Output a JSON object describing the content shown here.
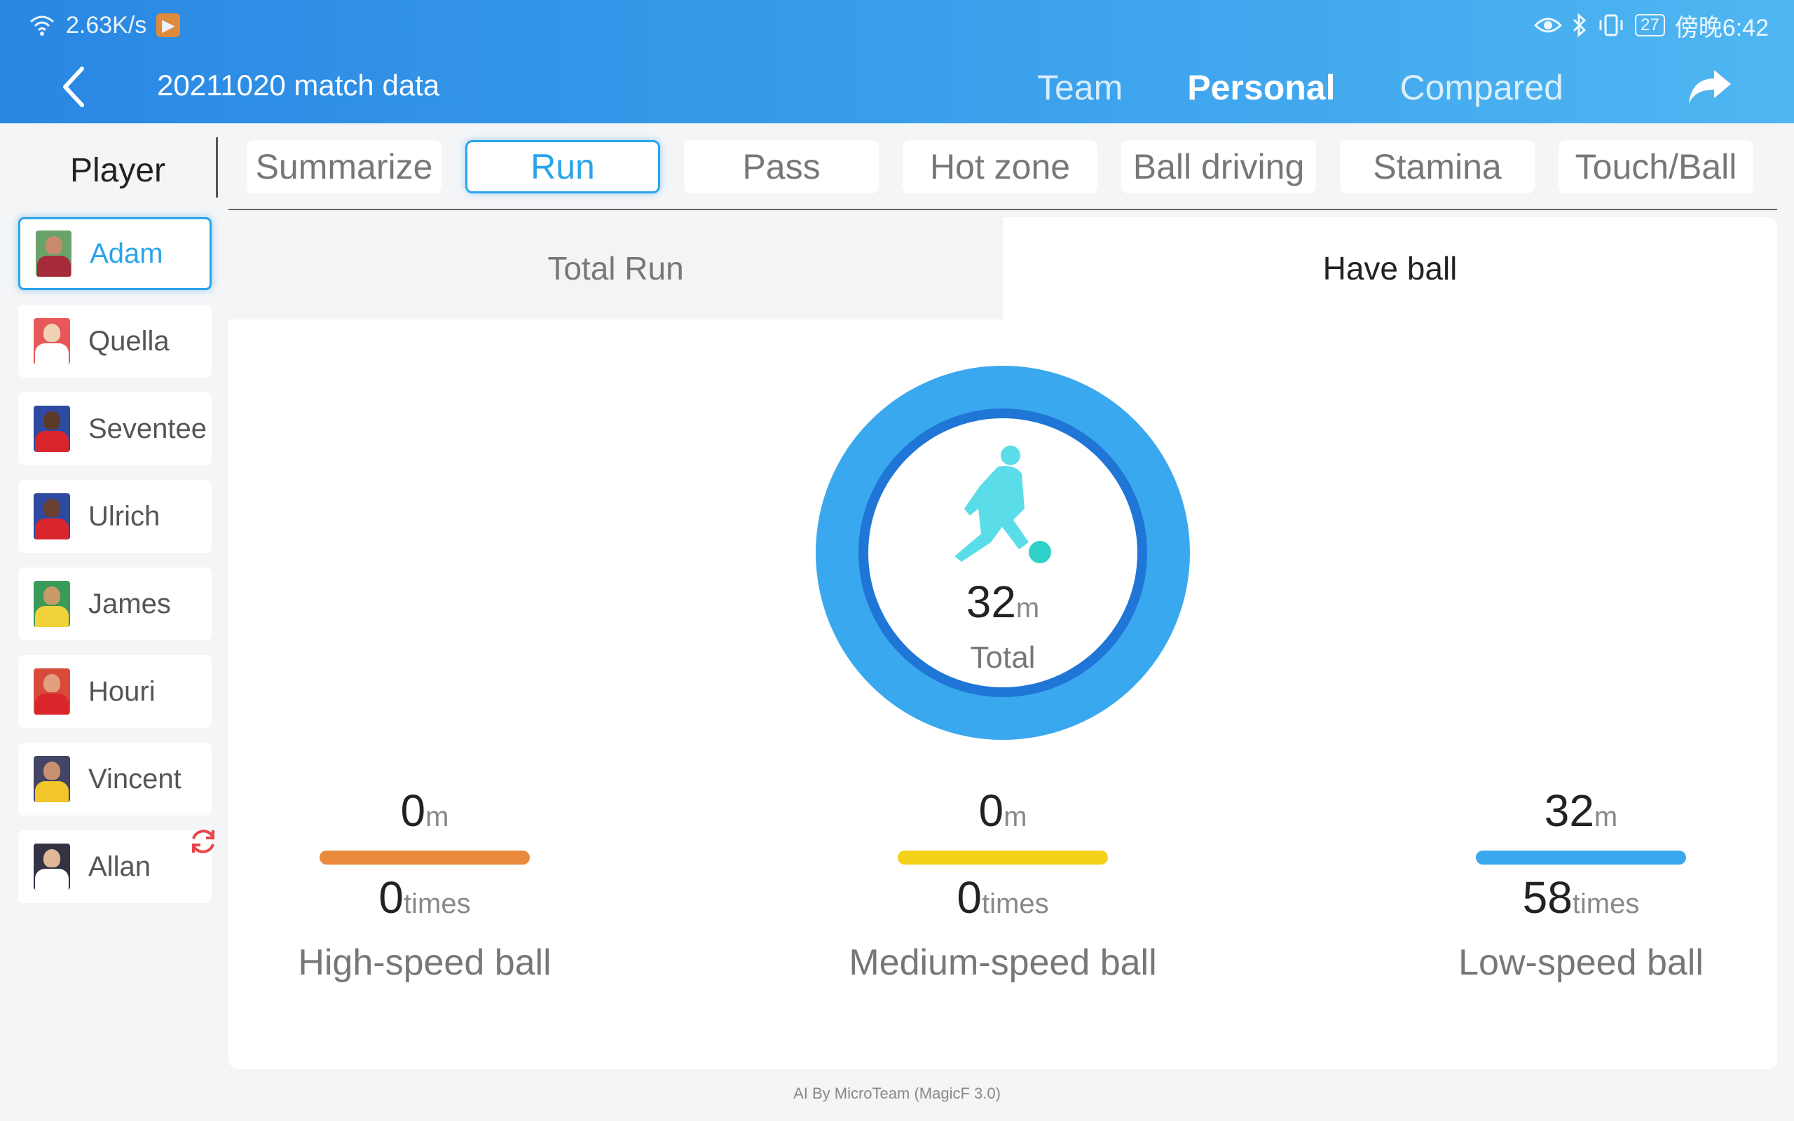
{
  "status_bar": {
    "network_speed": "2.63K/s",
    "battery": "27",
    "time": "傍晚6:42"
  },
  "header": {
    "title": "20211020 match data",
    "tabs": [
      {
        "label": "Team",
        "active": false
      },
      {
        "label": "Personal",
        "active": true
      },
      {
        "label": "Compared",
        "active": false
      }
    ]
  },
  "sidebar": {
    "header": "Player",
    "players": [
      {
        "name": "Adam",
        "active": true,
        "skin": "#c88a6a",
        "shirt": "#a52a3a",
        "bg": "#6aa36a"
      },
      {
        "name": "Quella",
        "active": false,
        "skin": "#f1d2b5",
        "shirt": "#ffffff",
        "bg": "#e8585a"
      },
      {
        "name": "Seventee",
        "active": false,
        "skin": "#5b3a2a",
        "shirt": "#d9262c",
        "bg": "#2e4aa0"
      },
      {
        "name": "Ulrich",
        "active": false,
        "skin": "#6a4030",
        "shirt": "#d9262c",
        "bg": "#2e4aa0"
      },
      {
        "name": "James",
        "active": false,
        "skin": "#c99a6a",
        "shirt": "#f2d23a",
        "bg": "#3a9a5a"
      },
      {
        "name": "Houri",
        "active": false,
        "skin": "#e0a080",
        "shirt": "#d9262c",
        "bg": "#d84a3a"
      },
      {
        "name": "Vincent",
        "active": false,
        "skin": "#c89070",
        "shirt": "#f2c62a",
        "bg": "#444466"
      },
      {
        "name": "Allan",
        "active": false,
        "skin": "#e0b898",
        "shirt": "#ffffff",
        "bg": "#333344"
      }
    ]
  },
  "sub_tabs": [
    {
      "label": "Summarize",
      "active": false
    },
    {
      "label": "Run",
      "active": true
    },
    {
      "label": "Pass",
      "active": false
    },
    {
      "label": "Hot zone",
      "active": false
    },
    {
      "label": "Ball driving",
      "active": false
    },
    {
      "label": "Stamina",
      "active": false
    },
    {
      "label": "Touch/Ball",
      "active": false
    }
  ],
  "segments": [
    {
      "label": "Total Run",
      "active": false
    },
    {
      "label": "Have ball",
      "active": true
    }
  ],
  "summary": {
    "total_value": "32",
    "total_unit": "m",
    "total_label": "Total"
  },
  "stats": [
    {
      "distance": "0",
      "distance_unit": "m",
      "times": "0",
      "times_unit": "times",
      "label": "High-speed ball",
      "color": "#ea8a3c"
    },
    {
      "distance": "0",
      "distance_unit": "m",
      "times": "0",
      "times_unit": "times",
      "label": "Medium-speed ball",
      "color": "#f5d21a"
    },
    {
      "distance": "32",
      "distance_unit": "m",
      "times": "58",
      "times_unit": "times",
      "label": "Low-speed ball",
      "color": "#3aa8ee"
    }
  ],
  "footer": "AI By MicroTeam (MagicF 3.0)",
  "colors": {
    "accent": "#2aa4ea",
    "ring_outer": "#3aa8ee",
    "ring_inner": "#1f76d6",
    "silhouette": "#5adde8"
  }
}
